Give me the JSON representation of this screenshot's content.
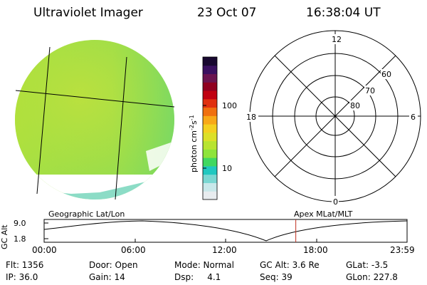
{
  "header": {
    "title": "Ultraviolet Imager",
    "date": "23 Oct 07",
    "time": "16:38:04 UT"
  },
  "colorbar": {
    "label_main": "photon cm",
    "label_exp1": "-2",
    "label_mid": "s",
    "label_exp2": "-1",
    "tick_100": "100",
    "tick_10": "10",
    "colors": [
      "#e8ecef",
      "#c8e8ea",
      "#7ad7d2",
      "#20c8c0",
      "#40d860",
      "#8ee43a",
      "#b8e430",
      "#dce028",
      "#f4d020",
      "#f8a818",
      "#f07010",
      "#e03010",
      "#c00010",
      "#900020",
      "#6a1450",
      "#3a1060",
      "#180830"
    ]
  },
  "polar_plot": {
    "labels": {
      "top": "12",
      "bottom": "0",
      "left": "18",
      "right": "6"
    },
    "rings": [
      "60",
      "70",
      "80"
    ]
  },
  "timeline": {
    "left_label": "Geographic Lat/Lon",
    "right_label": "Apex  MLat/MLT",
    "y_axis_title": "GC Alt",
    "y_ticks": [
      "9.0",
      "1.8"
    ],
    "x_ticks": [
      "00:00",
      "06:00",
      "12:00",
      "18:00",
      "23:59"
    ],
    "current_marker_hour": 16.63,
    "marker_color": "#c03020"
  },
  "status": {
    "flt": "Flt: 1356",
    "door": "Door: Open",
    "mode": "Mode: Normal",
    "gc_alt": "GC Alt: 3.6 Re",
    "glat": "GLat:  -3.5",
    "ip": "IP: 36.0",
    "gain": "Gain: 14",
    "dsp": "Dsp:     4.1",
    "seq": "Seq: 39",
    "glon": "GLon: 227.8"
  }
}
